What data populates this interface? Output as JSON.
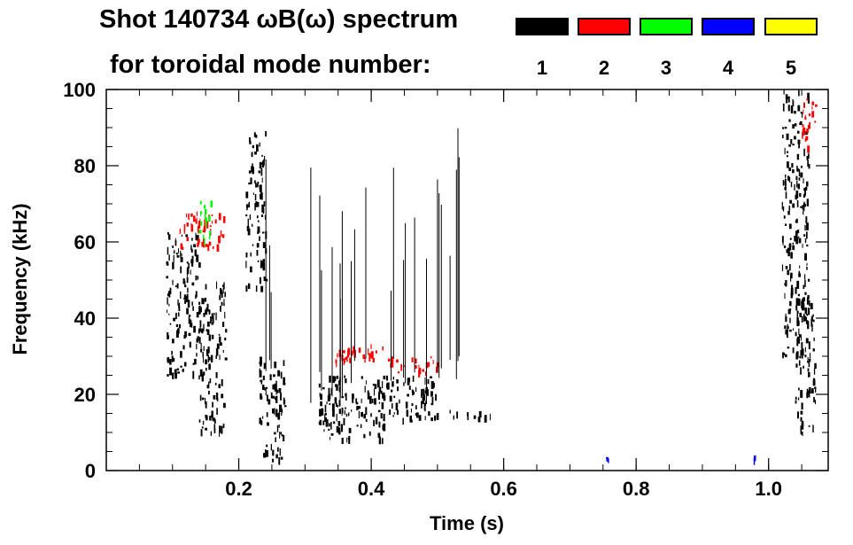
{
  "header": {
    "title_line1": "Shot 140734 ωB(ω) spectrum",
    "title_line2": "for toroidal mode number:"
  },
  "legend": [
    {
      "n": "1",
      "color": "#000000"
    },
    {
      "n": "2",
      "color": "#ff0000"
    },
    {
      "n": "3",
      "color": "#00ff00"
    },
    {
      "n": "4",
      "color": "#0000ff"
    },
    {
      "n": "5",
      "color": "#ffff00"
    }
  ],
  "chart_data": {
    "type": "spectrogram",
    "title": "Shot 140734 ωB(ω) spectrum",
    "xlabel": "Time (s)",
    "ylabel": "Frequency (kHz)",
    "xlim": [
      0.0,
      1.09
    ],
    "ylim": [
      0,
      100
    ],
    "xticks": [
      0.2,
      0.4,
      0.6,
      0.8,
      1.0
    ],
    "xtick_labels": [
      "0.2",
      "0.4",
      "0.6",
      "0.8",
      "1.0"
    ],
    "yticks": [
      0,
      20,
      40,
      60,
      80,
      100
    ],
    "ytick_labels": [
      "0",
      "20",
      "40",
      "60",
      "80",
      "100"
    ],
    "series": [
      {
        "name": "n=1",
        "color": "#000000",
        "regions": [
          {
            "t": [
              0.09,
              0.14
            ],
            "f": [
              25,
              63
            ]
          },
          {
            "t": [
              0.14,
              0.18
            ],
            "f": [
              10,
              50
            ]
          },
          {
            "t": [
              0.21,
              0.24
            ],
            "f": [
              48,
              90
            ]
          },
          {
            "t": [
              0.23,
              0.27
            ],
            "f": [
              3,
              30
            ]
          },
          {
            "t": [
              0.32,
              0.42
            ],
            "f": [
              8,
              25
            ]
          },
          {
            "t": [
              0.42,
              0.5
            ],
            "f": [
              13,
              25
            ]
          },
          {
            "t": [
              0.5,
              0.58
            ],
            "f": [
              14,
              16
            ]
          },
          {
            "t": [
              1.02,
              1.06
            ],
            "f": [
              30,
              100
            ]
          },
          {
            "t": [
              1.04,
              1.07
            ],
            "f": [
              10,
              45
            ]
          }
        ]
      },
      {
        "name": "n=2",
        "color": "#ff0000",
        "regions": [
          {
            "t": [
              0.11,
              0.18
            ],
            "f": [
              58,
              68
            ]
          },
          {
            "t": [
              0.34,
              0.42
            ],
            "f": [
              29,
              34
            ]
          },
          {
            "t": [
              0.42,
              0.5
            ],
            "f": [
              26,
              30
            ]
          },
          {
            "t": [
              1.05,
              1.07
            ],
            "f": [
              85,
              100
            ]
          }
        ]
      },
      {
        "name": "n=3",
        "color": "#00ff00",
        "regions": [
          {
            "t": [
              0.14,
              0.16
            ],
            "f": [
              60,
              72
            ]
          }
        ]
      },
      {
        "name": "n=4",
        "color": "#0000ff",
        "regions": [
          {
            "t": [
              0.75,
              0.76
            ],
            "f": [
              3,
              4
            ]
          },
          {
            "t": [
              0.97,
              0.98
            ],
            "f": [
              3,
              4
            ]
          }
        ]
      },
      {
        "name": "n=5",
        "color": "#ffff00",
        "regions": []
      }
    ]
  }
}
